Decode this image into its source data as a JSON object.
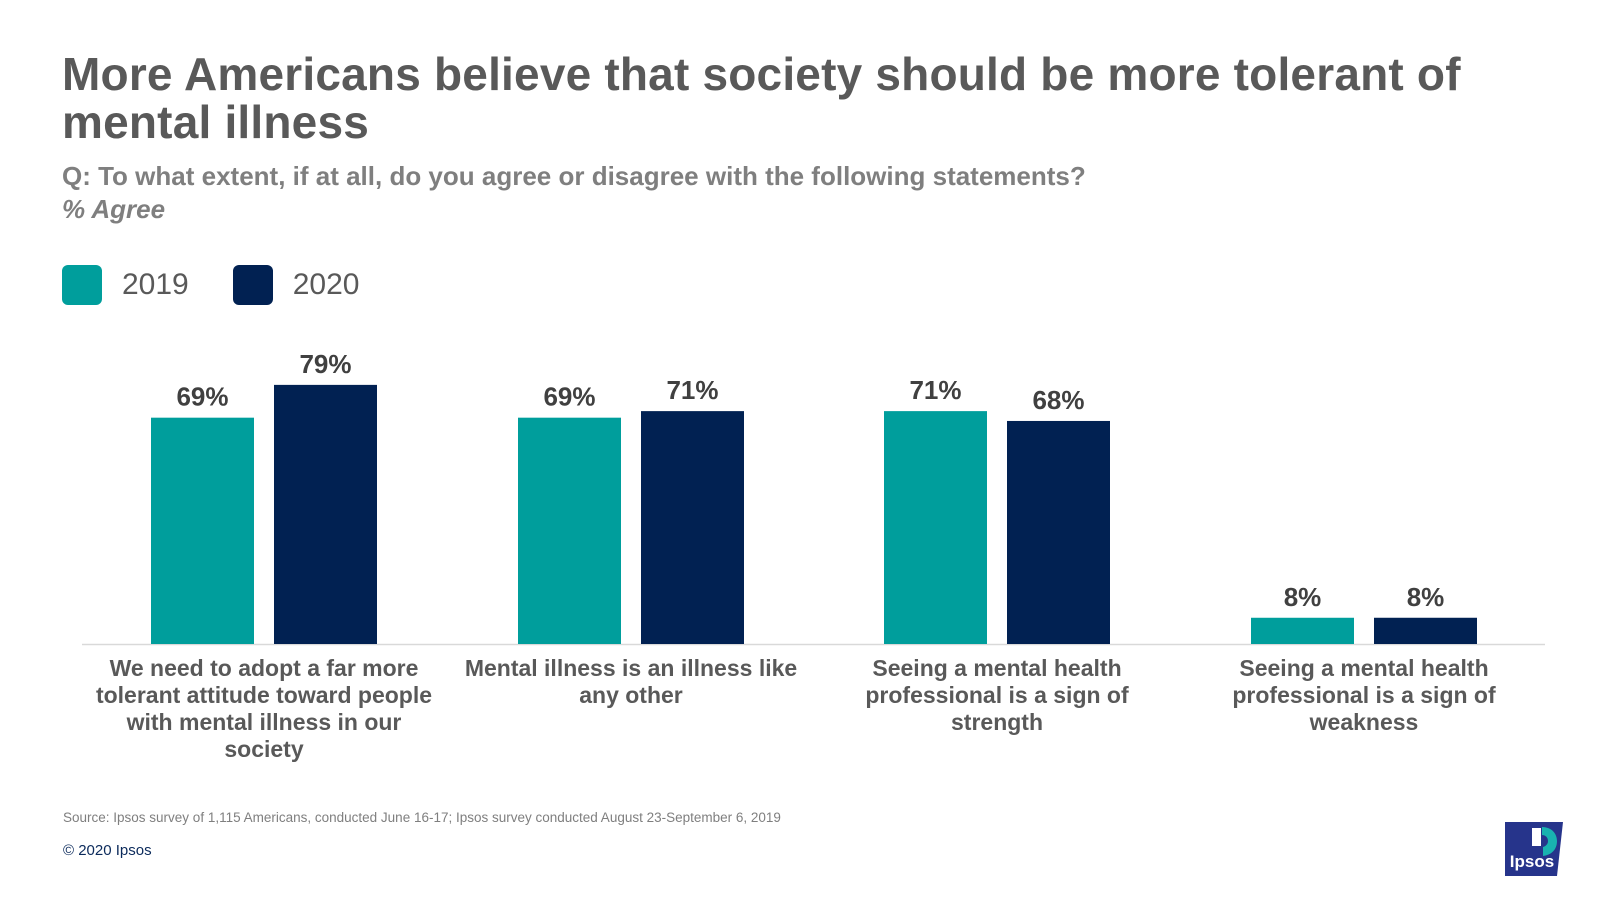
{
  "title": "More Americans believe that society should be more tolerant of mental illness",
  "subtitle": "Q: To what extent, if at all, do you agree or disagree with the following statements?",
  "subtitle_note": "% Agree",
  "colors": {
    "series_2019": "#009e9c",
    "series_2020": "#012152"
  },
  "chart_data": {
    "type": "bar",
    "title": "More Americans believe that society should be more tolerant of mental illness",
    "xlabel": "",
    "ylabel": "% Agree",
    "ylim": [
      0,
      100
    ],
    "legend_position": "top-left",
    "categories": [
      "We need to adopt a far more tolerant attitude toward people with mental illness in our society",
      "Mental illness is an illness like any other",
      "Seeing a mental health professional is a sign of strength",
      "Seeing a mental health professional is a sign of weakness"
    ],
    "series": [
      {
        "name": "2019",
        "values": [
          69,
          69,
          71,
          8
        ],
        "labels": [
          "69%",
          "69%",
          "71%",
          "8%"
        ]
      },
      {
        "name": "2020",
        "values": [
          79,
          71,
          68,
          8
        ],
        "labels": [
          "79%",
          "71%",
          "68%",
          "8%"
        ]
      }
    ]
  },
  "footer": {
    "source": "Source: Ipsos survey of 1,115 Americans, conducted June 16-17; Ipsos survey conducted August 23-September 6, 2019",
    "copyright": "© 2020 Ipsos",
    "logo_text": "Ipsos",
    "logo_icon": "ipsos-logo-icon"
  }
}
